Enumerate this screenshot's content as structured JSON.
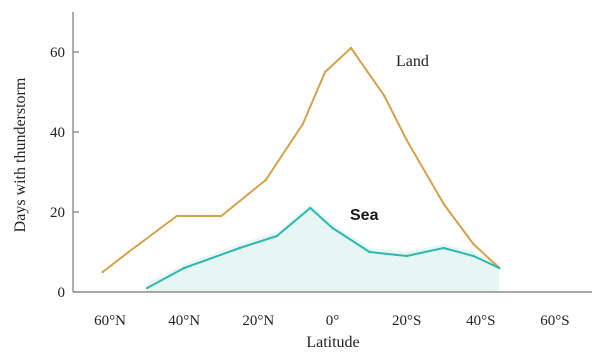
{
  "chart_data": {
    "type": "line",
    "xlabel": "Latitude",
    "ylabel": "Days with thunderstorm",
    "xlim": [
      -70,
      70
    ],
    "ylim": [
      0,
      70
    ],
    "x_ticks": [
      {
        "value": -60,
        "label": "60°N"
      },
      {
        "value": -40,
        "label": "40°N"
      },
      {
        "value": -20,
        "label": "20°N"
      },
      {
        "value": 0,
        "label": "0°"
      },
      {
        "value": 20,
        "label": "20°S"
      },
      {
        "value": 40,
        "label": "40°S"
      },
      {
        "value": 60,
        "label": "60°S"
      }
    ],
    "y_ticks": [
      {
        "value": 0,
        "label": "0"
      },
      {
        "value": 20,
        "label": "20"
      },
      {
        "value": 40,
        "label": "40"
      },
      {
        "value": 60,
        "label": "60"
      }
    ],
    "series": [
      {
        "name": "Land",
        "color": "#d4a24c",
        "points": [
          {
            "x": -62,
            "y": 5
          },
          {
            "x": -55,
            "y": 10
          },
          {
            "x": -42,
            "y": 19
          },
          {
            "x": -30,
            "y": 19
          },
          {
            "x": -18,
            "y": 28
          },
          {
            "x": -8,
            "y": 42
          },
          {
            "x": -2,
            "y": 55
          },
          {
            "x": 5,
            "y": 61
          },
          {
            "x": 14,
            "y": 49
          },
          {
            "x": 20,
            "y": 38
          },
          {
            "x": 30,
            "y": 22
          },
          {
            "x": 38,
            "y": 12
          },
          {
            "x": 45,
            "y": 6
          }
        ]
      },
      {
        "name": "Sea",
        "color": "#2fb7b0",
        "points": [
          {
            "x": -50,
            "y": 1
          },
          {
            "x": -40,
            "y": 6
          },
          {
            "x": -25,
            "y": 11
          },
          {
            "x": -15,
            "y": 14
          },
          {
            "x": -6,
            "y": 21
          },
          {
            "x": 0,
            "y": 16
          },
          {
            "x": 10,
            "y": 10
          },
          {
            "x": 20,
            "y": 9
          },
          {
            "x": 30,
            "y": 11
          },
          {
            "x": 38,
            "y": 9
          },
          {
            "x": 45,
            "y": 6
          }
        ]
      }
    ]
  }
}
